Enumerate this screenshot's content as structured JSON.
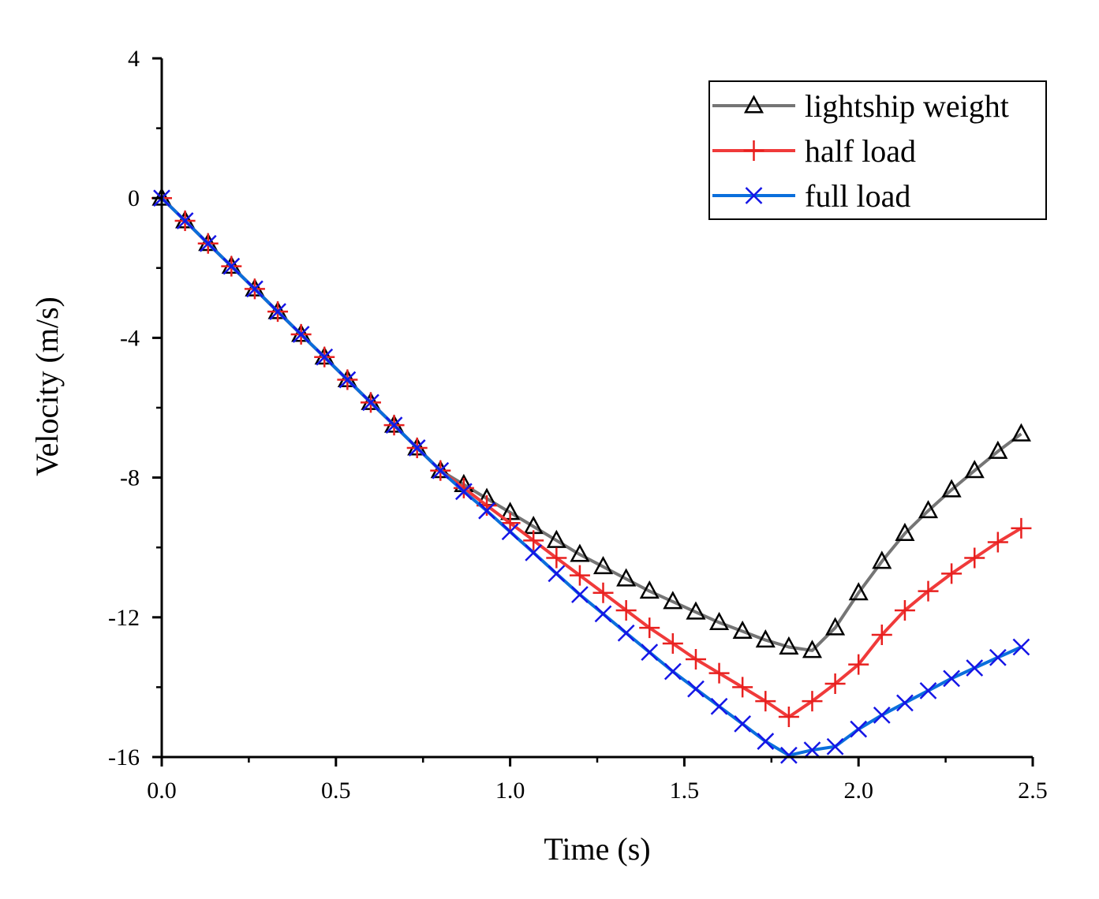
{
  "chart_data": {
    "type": "line",
    "title": "",
    "xlabel": "Time (s)",
    "ylabel": "Velocity (m/s)",
    "xlim": [
      0,
      2.5
    ],
    "ylim": [
      -16,
      4
    ],
    "x_ticks": [
      "0.0",
      "0.5",
      "1.0",
      "1.5",
      "2.0",
      "2.5"
    ],
    "y_ticks": [
      "4",
      "0",
      "-4",
      "-8",
      "-12",
      "-16"
    ],
    "grid": false,
    "legend_position": "top-right",
    "series": [
      {
        "name": "lightship weight",
        "color": "#757575",
        "marker": "triangle",
        "marker_color": "#000000",
        "x": [
          0.0,
          0.067,
          0.133,
          0.2,
          0.267,
          0.333,
          0.4,
          0.467,
          0.533,
          0.6,
          0.667,
          0.733,
          0.8,
          0.867,
          0.933,
          1.0,
          1.067,
          1.133,
          1.2,
          1.267,
          1.333,
          1.4,
          1.467,
          1.533,
          1.6,
          1.667,
          1.733,
          1.8,
          1.867,
          1.933,
          2.0,
          2.067,
          2.133,
          2.2,
          2.267,
          2.333,
          2.4,
          2.467
        ],
        "values": [
          0.0,
          -0.65,
          -1.3,
          -1.95,
          -2.6,
          -3.25,
          -3.9,
          -4.55,
          -5.2,
          -5.85,
          -6.5,
          -7.15,
          -7.8,
          -8.2,
          -8.6,
          -9.0,
          -9.4,
          -9.8,
          -10.2,
          -10.55,
          -10.9,
          -11.25,
          -11.55,
          -11.85,
          -12.15,
          -12.4,
          -12.65,
          -12.85,
          -12.95,
          -12.3,
          -11.3,
          -10.4,
          -9.6,
          -8.95,
          -8.35,
          -7.8,
          -7.25,
          -6.75
        ]
      },
      {
        "name": "half load",
        "color": "#f03a3a",
        "marker": "plus",
        "marker_color": "#e8201f",
        "x": [
          0.0,
          0.067,
          0.133,
          0.2,
          0.267,
          0.333,
          0.4,
          0.467,
          0.533,
          0.6,
          0.667,
          0.733,
          0.8,
          0.867,
          0.933,
          1.0,
          1.067,
          1.133,
          1.2,
          1.267,
          1.333,
          1.4,
          1.467,
          1.533,
          1.6,
          1.667,
          1.733,
          1.8,
          1.867,
          1.933,
          2.0,
          2.067,
          2.133,
          2.2,
          2.267,
          2.333,
          2.4,
          2.467
        ],
        "values": [
          0.0,
          -0.65,
          -1.3,
          -1.95,
          -2.6,
          -3.25,
          -3.9,
          -4.55,
          -5.2,
          -5.85,
          -6.5,
          -7.15,
          -7.8,
          -8.3,
          -8.8,
          -9.3,
          -9.8,
          -10.3,
          -10.8,
          -11.3,
          -11.8,
          -12.3,
          -12.75,
          -13.2,
          -13.6,
          -14.0,
          -14.4,
          -14.85,
          -14.4,
          -13.9,
          -13.35,
          -12.5,
          -11.8,
          -11.25,
          -10.75,
          -10.3,
          -9.85,
          -9.45
        ]
      },
      {
        "name": "full load",
        "color": "#0a6fdc",
        "marker": "x",
        "marker_color": "#1515e6",
        "x": [
          0.0,
          0.067,
          0.133,
          0.2,
          0.267,
          0.333,
          0.4,
          0.467,
          0.533,
          0.6,
          0.667,
          0.733,
          0.8,
          0.867,
          0.933,
          1.0,
          1.067,
          1.133,
          1.2,
          1.267,
          1.333,
          1.4,
          1.467,
          1.533,
          1.6,
          1.667,
          1.733,
          1.8,
          1.867,
          1.933,
          2.0,
          2.067,
          2.133,
          2.2,
          2.267,
          2.333,
          2.4,
          2.467
        ],
        "values": [
          0.0,
          -0.65,
          -1.3,
          -1.95,
          -2.6,
          -3.25,
          -3.9,
          -4.55,
          -5.2,
          -5.85,
          -6.5,
          -7.15,
          -7.8,
          -8.4,
          -8.95,
          -9.55,
          -10.15,
          -10.75,
          -11.35,
          -11.9,
          -12.45,
          -13.0,
          -13.55,
          -14.05,
          -14.55,
          -15.05,
          -15.55,
          -15.95,
          -15.8,
          -15.7,
          -15.2,
          -14.8,
          -14.45,
          -14.1,
          -13.75,
          -13.45,
          -13.15,
          -12.85
        ]
      }
    ]
  }
}
